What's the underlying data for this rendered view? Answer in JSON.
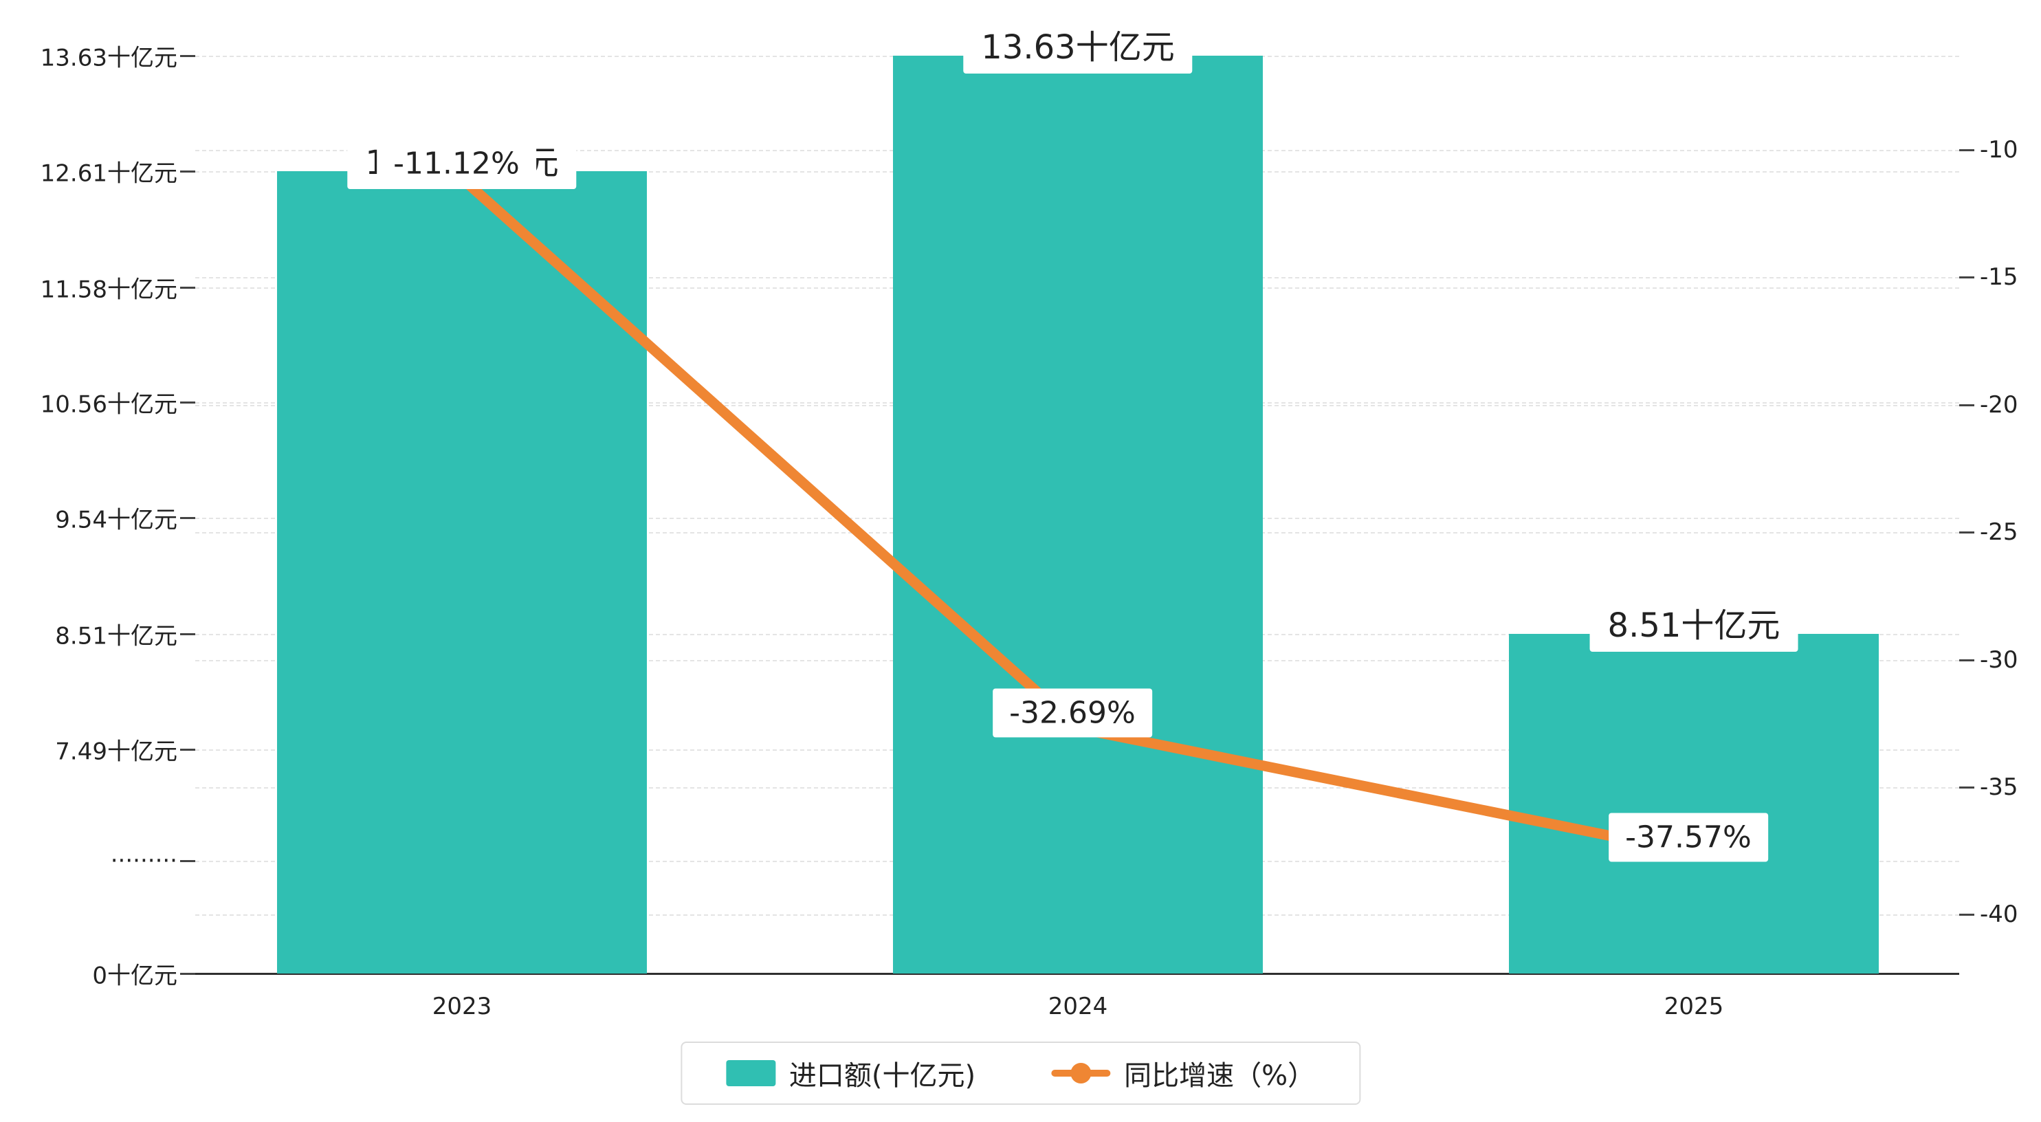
{
  "colors": {
    "bar": "#30bfb2",
    "line": "#ef8633",
    "grid": "#e4e4e4",
    "axis": "#2f2f2f",
    "text": "#222222"
  },
  "chart_data": {
    "type": "bar+line",
    "categories": [
      "2023",
      "2024",
      "2025"
    ],
    "series": [
      {
        "name": "进口额(十亿元)",
        "type": "bar",
        "values": [
          12.61,
          13.63,
          8.51
        ],
        "labels": [
          "12.61十亿元",
          "13.63十亿元",
          "8.51十亿元"
        ],
        "color": "#30bfb2"
      },
      {
        "name": "同比增速（%）",
        "type": "line",
        "values": [
          -11.12,
          -32.69,
          -37.57
        ],
        "labels": [
          "-11.12%",
          "-32.69%",
          "-37.57%"
        ],
        "color": "#ef8633"
      }
    ],
    "left_axis": {
      "unit": "十亿元",
      "ticks": [
        {
          "label": "13.63十亿元",
          "value": 13.63
        },
        {
          "label": "12.61十亿元",
          "value": 12.61
        },
        {
          "label": "11.58十亿元",
          "value": 11.58
        },
        {
          "label": "10.56十亿元",
          "value": 10.56
        },
        {
          "label": "9.54十亿元",
          "value": 9.54
        },
        {
          "label": "8.51十亿元",
          "value": 8.51
        },
        {
          "label": "7.49十亿元",
          "value": 7.49
        },
        {
          "label": "·········",
          "value": "break"
        },
        {
          "label": "0十亿元",
          "value": 0
        }
      ]
    },
    "right_axis": {
      "ticks": [
        {
          "label": "-10",
          "value": -10
        },
        {
          "label": "-15",
          "value": -15
        },
        {
          "label": "-20",
          "value": -20
        },
        {
          "label": "-25",
          "value": -25
        },
        {
          "label": "-30",
          "value": -30
        },
        {
          "label": "-35",
          "value": -35
        },
        {
          "label": "-40",
          "value": -40
        }
      ]
    },
    "legend": {
      "bar_label": "进口额(十亿元)",
      "line_label": "同比增速（%）"
    },
    "grid": true,
    "legend_position": "bottom-center"
  }
}
